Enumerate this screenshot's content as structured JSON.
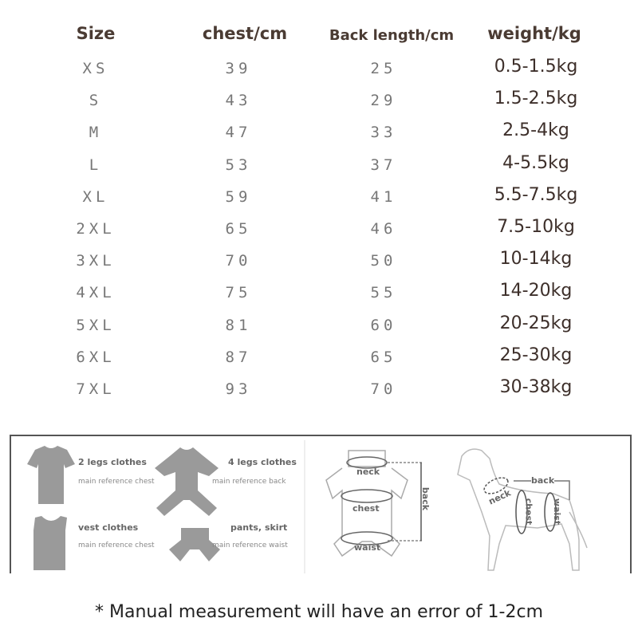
{
  "headers": {
    "size": "Size",
    "chest": "chest/cm",
    "back": "Back length/cm",
    "weight": "weight/kg"
  },
  "rows": [
    {
      "size": "XS",
      "chest": "39",
      "back": "25",
      "weight": "0.5-1.5kg"
    },
    {
      "size": "S",
      "chest": "43",
      "back": "29",
      "weight": "1.5-2.5kg"
    },
    {
      "size": "M",
      "chest": "47",
      "back": "33",
      "weight": "2.5-4kg"
    },
    {
      "size": "L",
      "chest": "53",
      "back": "37",
      "weight": "4-5.5kg"
    },
    {
      "size": "XL",
      "chest": "59",
      "back": "41",
      "weight": "5.5-7.5kg"
    },
    {
      "size": "2XL",
      "chest": "65",
      "back": "46",
      "weight": "7.5-10kg"
    },
    {
      "size": "3XL",
      "chest": "70",
      "back": "50",
      "weight": "10-14kg"
    },
    {
      "size": "4XL",
      "chest": "75",
      "back": "55",
      "weight": "14-20kg"
    },
    {
      "size": "5XL",
      "chest": "81",
      "back": "60",
      "weight": "20-25kg"
    },
    {
      "size": "6XL",
      "chest": "87",
      "back": "65",
      "weight": "25-30kg"
    },
    {
      "size": "7XL",
      "chest": "93",
      "back": "70",
      "weight": "30-38kg"
    }
  ],
  "guide": {
    "types": [
      {
        "title": "2 legs clothes",
        "ref": "main reference chest"
      },
      {
        "title": "4 legs clothes",
        "ref": "main reference back"
      },
      {
        "title": "vest clothes",
        "ref": "main reference chest"
      },
      {
        "title": "pants, skirt",
        "ref": "main reference waist"
      }
    ],
    "garment_labels": {
      "neck": "neck",
      "chest": "chest",
      "waist": "waist",
      "back": "back"
    },
    "dog_labels": {
      "neck": "neck",
      "chest": "chest",
      "waist": "waist",
      "back": "back"
    }
  },
  "note": "* Manual measurement will have an error of 1-2cm"
}
